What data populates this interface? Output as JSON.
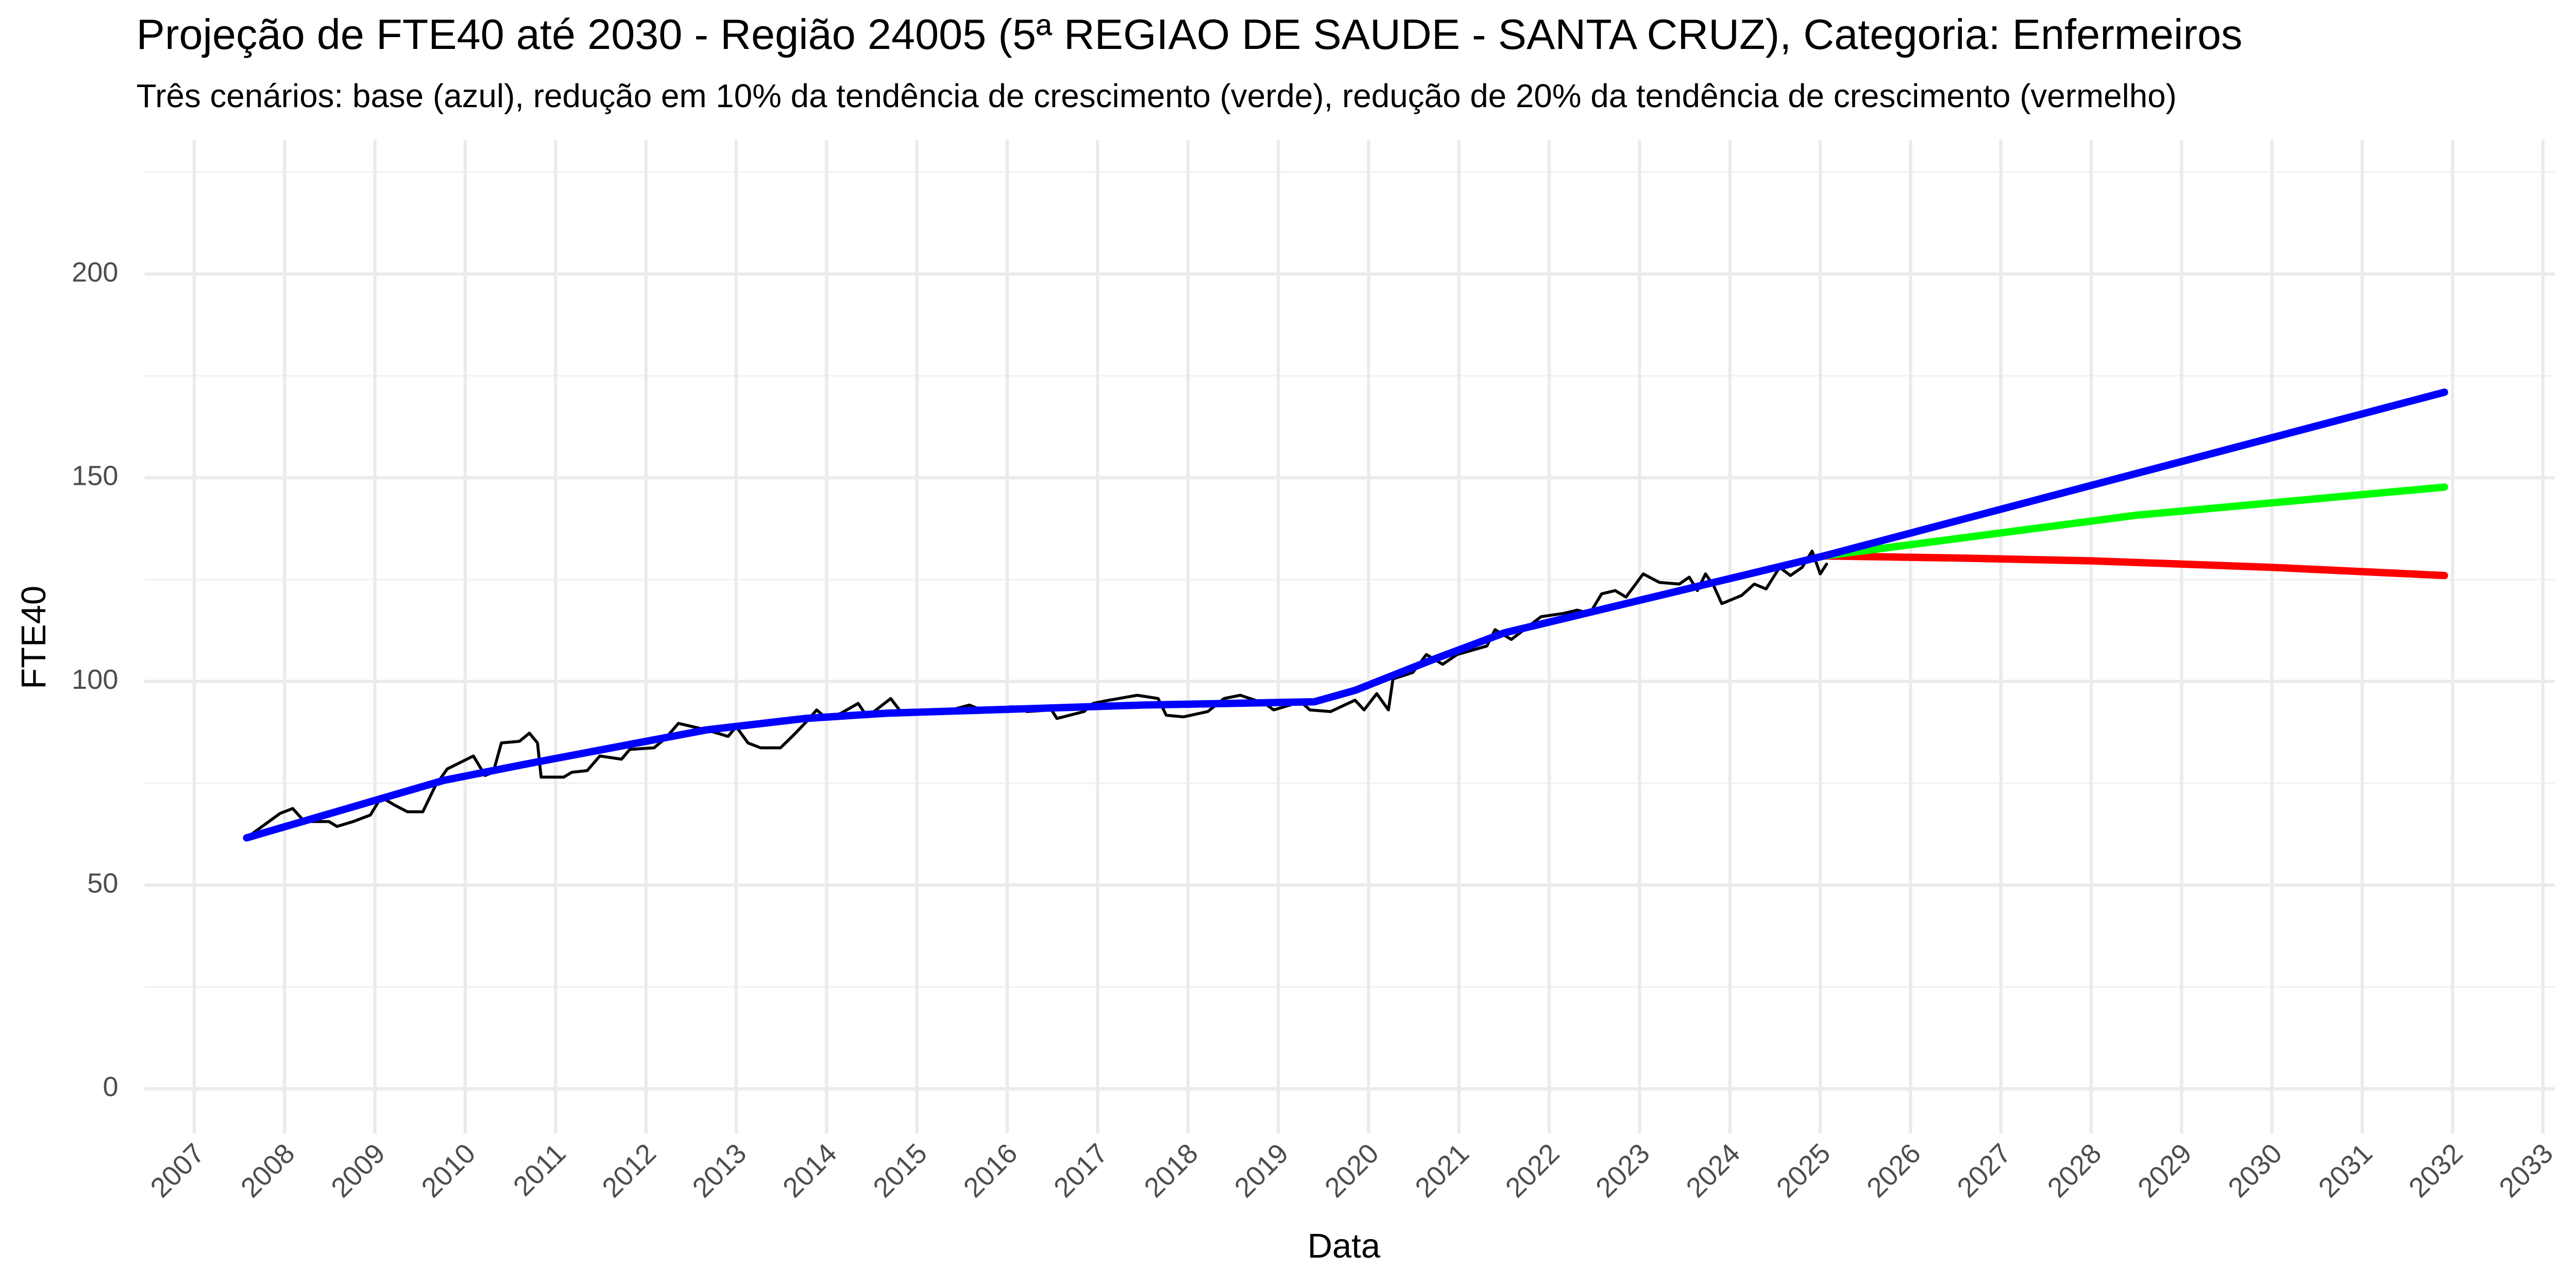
{
  "chart_data": {
    "type": "line",
    "title": "Projeção de FTE40 até 2030 - Região 24005 (5ª REGIAO DE SAUDE - SANTA CRUZ), Categoria: Enfermeiros",
    "subtitle": "Três cenários: base (azul), redução em 10% da tendência de crescimento (verde), redução de 20% da tendência de crescimento (vermelho)",
    "x_label": "Data",
    "y_label": "FTE40",
    "xlim": [
      2006.45,
      2033.13
    ],
    "ylim": [
      -11,
      233
    ],
    "xticks": [
      2007,
      2008,
      2009,
      2010,
      2011,
      2012,
      2013,
      2014,
      2015,
      2016,
      2017,
      2018,
      2019,
      2020,
      2021,
      2022,
      2023,
      2024,
      2025,
      2026,
      2027,
      2028,
      2029,
      2030,
      2031,
      2032,
      2033
    ],
    "yticks": [
      0,
      50,
      100,
      150,
      200
    ],
    "minor_yticks": [
      25,
      75,
      125,
      175,
      225
    ],
    "grid": true,
    "series": [
      {
        "color": "#000000",
        "x": [
          2007.58,
          2007.95,
          2008.09,
          2008.22,
          2008.49,
          2008.58,
          2008.76,
          2008.95,
          2009.07,
          2009.22,
          2009.36,
          2009.53,
          2009.67,
          2009.8,
          2010.09,
          2010.22,
          2010.31,
          2010.4,
          2010.6,
          2010.71,
          2010.8,
          2010.84,
          2011.09,
          2011.18,
          2011.35,
          2011.49,
          2011.73,
          2011.82,
          2012.09,
          2012.22,
          2012.36,
          2012.67,
          2012.91,
          2013.0,
          2013.13,
          2013.27,
          2013.49,
          2013.62,
          2013.76,
          2013.89,
          2014.0,
          2014.16,
          2014.35,
          2014.45,
          2014.71,
          2014.82,
          2015.31,
          2015.58,
          2015.76,
          2016.05,
          2016.22,
          2016.49,
          2016.55,
          2016.85,
          2016.95,
          2017.13,
          2017.44,
          2017.67,
          2017.76,
          2017.95,
          2018.22,
          2018.4,
          2018.58,
          2018.85,
          2018.95,
          2019.25,
          2019.35,
          2019.58,
          2019.85,
          2019.95,
          2020.09,
          2020.22,
          2020.27,
          2020.49,
          2020.64,
          2020.82,
          2020.98,
          2021.31,
          2021.4,
          2021.58,
          2021.91,
          2022.16,
          2022.31,
          2022.45,
          2022.58,
          2022.73,
          2022.85,
          2023.04,
          2023.22,
          2023.44,
          2023.55,
          2023.64,
          2023.73,
          2023.82,
          2023.91,
          2024.13,
          2024.27,
          2024.4,
          2024.55,
          2024.67,
          2024.8,
          2024.91,
          2025.0,
          2025.07
        ],
        "values": [
          61.6,
          67.6,
          68.8,
          65.6,
          65.6,
          64.4,
          65.6,
          67.2,
          71.6,
          69.6,
          68,
          68,
          74.4,
          78.5,
          81.7,
          76.9,
          77.7,
          84.9,
          85.3,
          87.3,
          84.9,
          76.5,
          76.5,
          77.7,
          78.1,
          81.7,
          80.9,
          83.3,
          83.7,
          86.1,
          89.7,
          88.1,
          86.5,
          88.9,
          84.9,
          83.7,
          83.7,
          86.5,
          89.7,
          93,
          90.9,
          92.2,
          94.6,
          91.3,
          95.8,
          92.6,
          92.6,
          94.2,
          92.6,
          93.8,
          92.6,
          93,
          90.9,
          92.6,
          94.6,
          95.4,
          96.6,
          95.8,
          91.7,
          91.3,
          92.6,
          95.8,
          96.6,
          94.6,
          93,
          95,
          93,
          92.6,
          95.4,
          93,
          97,
          93,
          100.6,
          102.2,
          106.6,
          104.2,
          106.6,
          108.7,
          112.7,
          110.3,
          115.9,
          116.7,
          117.5,
          116.7,
          121.5,
          122.3,
          120.7,
          126.4,
          124.3,
          123.9,
          125.6,
          122.3,
          126.4,
          123.5,
          119.1,
          121.1,
          123.9,
          122.7,
          128,
          126,
          128,
          132,
          126.4,
          128.8
        ]
      },
      {
        "color": "#ff0000",
        "x": [
          2025.04,
          2026.5,
          2028.0,
          2030.0,
          2031.91
        ],
        "values": [
          130.8,
          130.3,
          129.6,
          128,
          126
        ]
      },
      {
        "color": "#00ff00",
        "x": [
          2025.04,
          2028.5,
          2031.91
        ],
        "values": [
          130.8,
          140.8,
          147.7
        ]
      },
      {
        "color": "#0000ff",
        "x": [
          2007.58,
          2009.76,
          2010.67,
          2012.67,
          2013.76,
          2014.67,
          2017.5,
          2019.4,
          2019.85,
          2020.67,
          2021.5,
          2025.04,
          2031.91
        ],
        "values": [
          61.6,
          75.7,
          79.7,
          88.1,
          90.9,
          92.2,
          94.2,
          95,
          97.8,
          105,
          111.9,
          130.8,
          171
        ]
      }
    ]
  }
}
